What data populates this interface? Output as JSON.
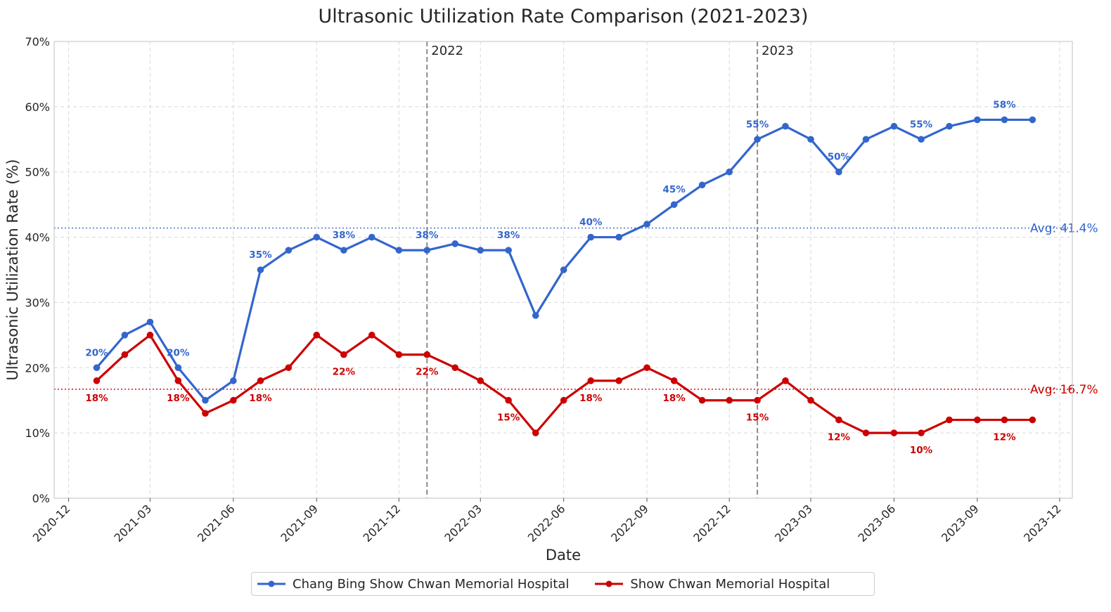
{
  "colors": {
    "series1": "#3366CC",
    "series2": "#CC0000",
    "grid": "#d9d9d9",
    "yearline": "#8c8c8c",
    "text": "#262626"
  },
  "chart_data": {
    "type": "line",
    "title": "Ultrasonic Utilization Rate Comparison (2021-2023)",
    "xlabel": "Date",
    "ylabel": "Ultrasonic Utilization Rate (%)",
    "x_ticks": [
      "2020-12",
      "2021-03",
      "2021-06",
      "2021-09",
      "2021-12",
      "2022-03",
      "2022-06",
      "2022-09",
      "2022-12",
      "2023-03",
      "2023-06",
      "2023-09",
      "2023-12"
    ],
    "y_ticks": [
      "0%",
      "10%",
      "20%",
      "30%",
      "40%",
      "50%",
      "60%",
      "70%"
    ],
    "ylim": [
      0,
      70
    ],
    "xlim": [
      "2020-11-15",
      "2023-12-15"
    ],
    "grid": true,
    "legend_position": "bottom-center",
    "x": [
      "2021-01",
      "2021-02",
      "2021-03",
      "2021-04",
      "2021-05",
      "2021-06",
      "2021-07",
      "2021-08",
      "2021-09",
      "2021-10",
      "2021-11",
      "2021-12",
      "2022-01",
      "2022-02",
      "2022-03",
      "2022-04",
      "2022-05",
      "2022-06",
      "2022-07",
      "2022-08",
      "2022-09",
      "2022-10",
      "2022-11",
      "2022-12",
      "2023-01",
      "2023-02",
      "2023-03",
      "2023-04",
      "2023-05",
      "2023-06",
      "2023-07",
      "2023-08",
      "2023-09",
      "2023-10",
      "2023-11"
    ],
    "series": [
      {
        "name": "Chang Bing Show Chwan Memorial Hospital",
        "values": [
          20,
          25,
          27,
          20,
          15,
          18,
          35,
          38,
          40,
          38,
          40,
          38,
          38,
          39,
          38,
          38,
          28,
          35,
          40,
          40,
          42,
          45,
          48,
          50,
          55,
          57,
          55,
          50,
          55,
          57,
          55,
          57,
          58,
          58,
          58
        ],
        "data_labels": [
          {
            "index": 0,
            "text": "20%"
          },
          {
            "index": 3,
            "text": "20%"
          },
          {
            "index": 6,
            "text": "35%"
          },
          {
            "index": 9,
            "text": "38%"
          },
          {
            "index": 12,
            "text": "38%"
          },
          {
            "index": 15,
            "text": "38%"
          },
          {
            "index": 18,
            "text": "40%"
          },
          {
            "index": 21,
            "text": "45%"
          },
          {
            "index": 24,
            "text": "55%"
          },
          {
            "index": 27,
            "text": "50%"
          },
          {
            "index": 30,
            "text": "55%"
          },
          {
            "index": 33,
            "text": "58%"
          }
        ],
        "average": 41.4,
        "average_label": "Avg: 41.4%"
      },
      {
        "name": "Show Chwan Memorial Hospital",
        "values": [
          18,
          22,
          25,
          18,
          13,
          15,
          18,
          20,
          25,
          22,
          25,
          22,
          22,
          20,
          18,
          15,
          10,
          15,
          18,
          18,
          20,
          18,
          15,
          15,
          15,
          18,
          15,
          12,
          10,
          10,
          10,
          12,
          12,
          12,
          12
        ],
        "data_labels": [
          {
            "index": 0,
            "text": "18%"
          },
          {
            "index": 3,
            "text": "18%"
          },
          {
            "index": 6,
            "text": "18%"
          },
          {
            "index": 9,
            "text": "22%"
          },
          {
            "index": 12,
            "text": "22%"
          },
          {
            "index": 15,
            "text": "15%"
          },
          {
            "index": 18,
            "text": "18%"
          },
          {
            "index": 21,
            "text": "18%"
          },
          {
            "index": 24,
            "text": "15%"
          },
          {
            "index": 27,
            "text": "12%"
          },
          {
            "index": 30,
            "text": "10%"
          },
          {
            "index": 33,
            "text": "12%"
          }
        ],
        "average": 16.7,
        "average_label": "Avg: 16.7%"
      }
    ],
    "annotations": [
      {
        "date": "2022-01-01",
        "text": "2022"
      },
      {
        "date": "2023-01-01",
        "text": "2023"
      }
    ]
  }
}
